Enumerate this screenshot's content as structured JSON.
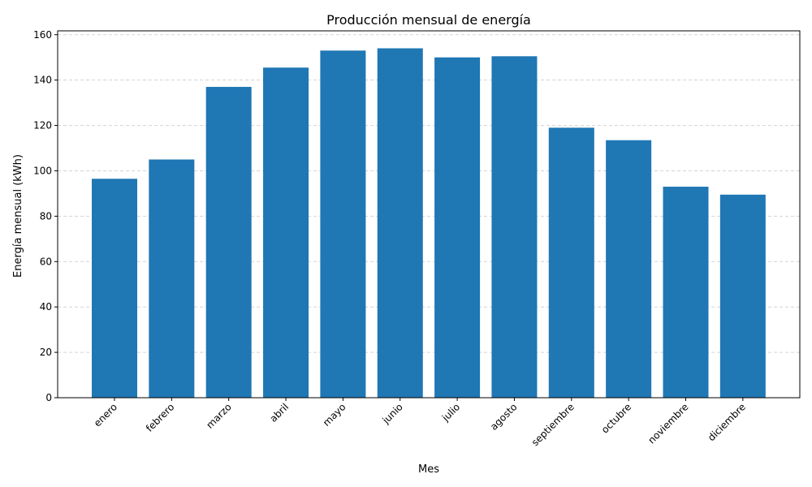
{
  "chart_data": {
    "type": "bar",
    "title": "Producción mensual de energía",
    "xlabel": "Mes",
    "ylabel": "Energía mensual (kWh)",
    "categories": [
      "enero",
      "febrero",
      "marzo",
      "abril",
      "mayo",
      "junio",
      "julio",
      "agosto",
      "septiembre",
      "octubre",
      "noviembre",
      "diciembre"
    ],
    "values": [
      96.5,
      105.0,
      137.0,
      145.5,
      153.0,
      154.0,
      150.0,
      150.5,
      119.0,
      113.5,
      93.0,
      89.5
    ],
    "ylim": [
      0,
      161.7
    ],
    "yticks": [
      0,
      20,
      40,
      60,
      80,
      100,
      120,
      140,
      160
    ],
    "grid": "y-dashed",
    "bar_color": "#1f77b4",
    "grid_color": "#d3d3d3"
  }
}
